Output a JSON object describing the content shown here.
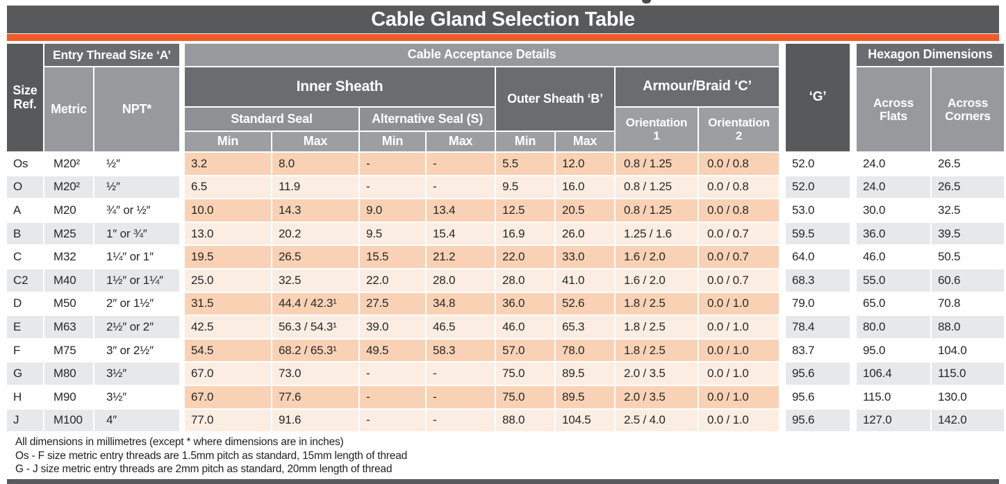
{
  "title": "Cable Gland Selection Table",
  "header": {
    "size_ref": "Size Ref.",
    "entry_thread": "Entry Thread Size ‘A’",
    "cable_acceptance": "Cable Acceptance Details",
    "hexagon_dimensions": "Hexagon Dimensions",
    "metric": "Metric",
    "npt": "NPT*",
    "inner_sheath": "Inner Sheath",
    "outer_sheath": "Outer Sheath ‘B’",
    "armour_braid": "Armour/Braid ‘C’",
    "g_label": "‘G’",
    "across_flats": "Across Flats",
    "across_corners": "Across Corners",
    "standard_seal": "Standard Seal",
    "alternative_seal": "Alternative Seal (S)",
    "orientation1": "Orientation 1",
    "orientation2": "Orientation 2",
    "min": "Min",
    "max": "Max"
  },
  "rows": [
    {
      "size": "Os",
      "metric": "M20²",
      "npt": "½″",
      "is_min": "3.2",
      "is_max": "8.0",
      "as_min": "-",
      "as_max": "-",
      "os_min": "5.5",
      "os_max": "12.0",
      "orient1": "0.8 / 1.25",
      "orient2": "0.0 / 0.8",
      "g": "52.0",
      "across_flats": "24.0",
      "across_corners": "26.5"
    },
    {
      "size": "O",
      "metric": "M20²",
      "npt": "½″",
      "is_min": "6.5",
      "is_max": "11.9",
      "as_min": "-",
      "as_max": "-",
      "os_min": "9.5",
      "os_max": "16.0",
      "orient1": "0.8 / 1.25",
      "orient2": "0.0 / 0.8",
      "g": "52.0",
      "across_flats": "24.0",
      "across_corners": "26.5"
    },
    {
      "size": "A",
      "metric": "M20",
      "npt": "¾″ or ½″",
      "is_min": "10.0",
      "is_max": "14.3",
      "as_min": "9.0",
      "as_max": "13.4",
      "os_min": "12.5",
      "os_max": "20.5",
      "orient1": "0.8 / 1.25",
      "orient2": "0.0 / 0.8",
      "g": "53.0",
      "across_flats": "30.0",
      "across_corners": "32.5"
    },
    {
      "size": "B",
      "metric": "M25",
      "npt": "1″ or ¾″",
      "is_min": "13.0",
      "is_max": "20.2",
      "as_min": "9.5",
      "as_max": "15.4",
      "os_min": "16.9",
      "os_max": "26.0",
      "orient1": "1.25 / 1.6",
      "orient2": "0.0 / 0.7",
      "g": "59.5",
      "across_flats": "36.0",
      "across_corners": "39.5"
    },
    {
      "size": "C",
      "metric": "M32",
      "npt": "1¼″ or 1″",
      "is_min": "19.5",
      "is_max": "26.5",
      "as_min": "15.5",
      "as_max": "21.2",
      "os_min": "22.0",
      "os_max": "33.0",
      "orient1": "1.6 / 2.0",
      "orient2": "0.0 / 0.7",
      "g": "64.0",
      "across_flats": "46.0",
      "across_corners": "50.5"
    },
    {
      "size": "C2",
      "metric": "M40",
      "npt": "1½″ or 1¼″",
      "is_min": "25.0",
      "is_max": "32.5",
      "as_min": "22.0",
      "as_max": "28.0",
      "os_min": "28.0",
      "os_max": "41.0",
      "orient1": "1.6 / 2.0",
      "orient2": "0.0 / 0.7",
      "g": "68.3",
      "across_flats": "55.0",
      "across_corners": "60.6"
    },
    {
      "size": "D",
      "metric": "M50",
      "npt": "2″ or 1½″",
      "is_min": "31.5",
      "is_max": "44.4 / 42.3¹",
      "as_min": "27.5",
      "as_max": "34.8",
      "os_min": "36.0",
      "os_max": "52.6",
      "orient1": "1.8 / 2.5",
      "orient2": "0.0 / 1.0",
      "g": "79.0",
      "across_flats": "65.0",
      "across_corners": "70.8"
    },
    {
      "size": "E",
      "metric": "M63",
      "npt": "2½″ or 2″",
      "is_min": "42.5",
      "is_max": "56.3 / 54.3¹",
      "as_min": "39.0",
      "as_max": "46.5",
      "os_min": "46.0",
      "os_max": "65.3",
      "orient1": "1.8 / 2.5",
      "orient2": "0.0 / 1.0",
      "g": "78.4",
      "across_flats": "80.0",
      "across_corners": "88.0"
    },
    {
      "size": "F",
      "metric": "M75",
      "npt": "3″ or 2½″",
      "is_min": "54.5",
      "is_max": "68.2 / 65.3¹",
      "as_min": "49.5",
      "as_max": "58.3",
      "os_min": "57.0",
      "os_max": "78.0",
      "orient1": "1.8 / 2.5",
      "orient2": "0.0 / 1.0",
      "g": "83.7",
      "across_flats": "95.0",
      "across_corners": "104.0"
    },
    {
      "size": "G",
      "metric": "M80",
      "npt": "3½″",
      "is_min": "67.0",
      "is_max": "73.0",
      "as_min": "-",
      "as_max": "-",
      "os_min": "75.0",
      "os_max": "89.5",
      "orient1": "2.0 / 3.5",
      "orient2": "0.0 / 1.0",
      "g": "95.6",
      "across_flats": "106.4",
      "across_corners": "115.0"
    },
    {
      "size": "H",
      "metric": "M90",
      "npt": "3½″",
      "is_min": "67.0",
      "is_max": "77.6",
      "as_min": "-",
      "as_max": "-",
      "os_min": "75.0",
      "os_max": "89.5",
      "orient1": "2.0 / 3.5",
      "orient2": "0.0 / 1.0",
      "g": "95.6",
      "across_flats": "115.0",
      "across_corners": "130.0"
    },
    {
      "size": "J",
      "metric": "M100",
      "npt": "4″",
      "is_min": "77.0",
      "is_max": "91.6",
      "as_min": "-",
      "as_max": "-",
      "os_min": "88.0",
      "os_max": "104.5",
      "orient1": "2.5 / 4.0",
      "orient2": "0.0 / 1.0",
      "g": "95.6",
      "across_flats": "127.0",
      "across_corners": "142.0"
    }
  ],
  "notes": [
    "All dimensions in millimetres (except * where dimensions are in inches)",
    "Os - F size metric entry threads are 1.5mm pitch as standard, 15mm length of thread",
    "G - J size metric entry threads are 2mm pitch as standard, 20mm length of thread"
  ],
  "colors": {
    "accent_orange": "#F15A29",
    "header_dark": "#58595B",
    "header_mid": "#6B6C6F",
    "header_gray": "#97999C",
    "seal_gray": "#8E9093",
    "minmax_gray": "#9C9EA1",
    "row_gray": "#E7E8E9",
    "peach_dark": "#F9D2B5",
    "peach_light": "#FCEDE2"
  }
}
